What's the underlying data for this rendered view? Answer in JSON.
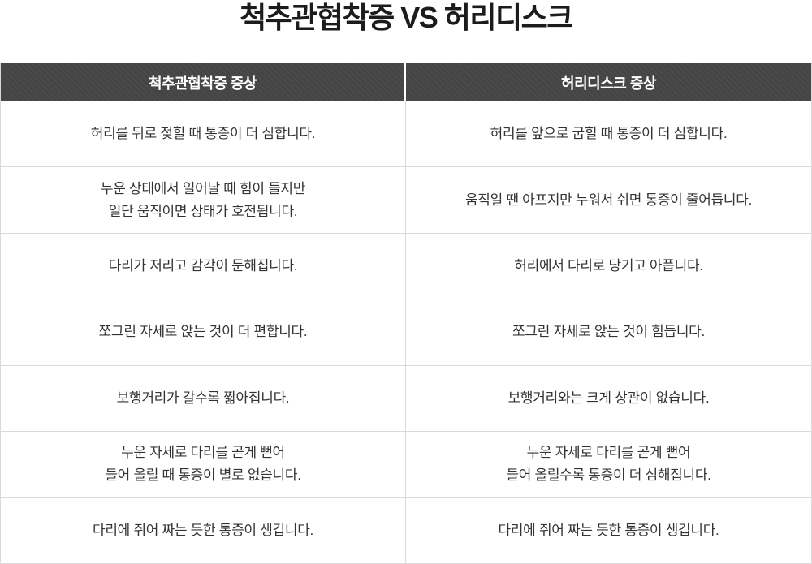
{
  "page": {
    "title": "척추관협착증 VS 허리디스크"
  },
  "table": {
    "headers": {
      "left": "척추관협착증 증상",
      "right": "허리디스크 증상"
    },
    "rows": [
      {
        "left": "허리를 뒤로 젖힐 때 통증이 더 심합니다.",
        "right": "허리를 앞으로 굽힐 때 통증이 더 심합니다."
      },
      {
        "left": "누운 상태에서 일어날 때 힘이 들지만\n일단 움직이면 상태가 호전됩니다.",
        "right": "움직일 땐 아프지만 누워서 쉬면 통증이 줄어듭니다."
      },
      {
        "left": "다리가 저리고 감각이 둔해집니다.",
        "right": "허리에서 다리로 당기고 아픕니다."
      },
      {
        "left": "쪼그린 자세로 앉는 것이 더 편합니다.",
        "right": "쪼그린 자세로 앉는 것이 힘듭니다."
      },
      {
        "left": "보행거리가 갈수록 짧아집니다.",
        "right": "보행거리와는 크게 상관이 없습니다."
      },
      {
        "left": "누운 자세로 다리를 곧게 뻗어\n들어 올릴 때 통증이 별로 없습니다.",
        "right": "누운 자세로 다리를 곧게 뻗어\n들어 올릴수록 통증이 더 심해집니다."
      },
      {
        "left": "다리에 쥐어 짜는 듯한 통증이 생깁니다.",
        "right": "다리에 쥐어 짜는 듯한 통증이 생깁니다."
      }
    ],
    "colors": {
      "header_background": "#454545",
      "header_stripe": "#4e4e4e",
      "header_text": "#ffffff",
      "body_text": "#333333",
      "border": "#d9d9d9",
      "header_divider": "#ffffff"
    }
  }
}
